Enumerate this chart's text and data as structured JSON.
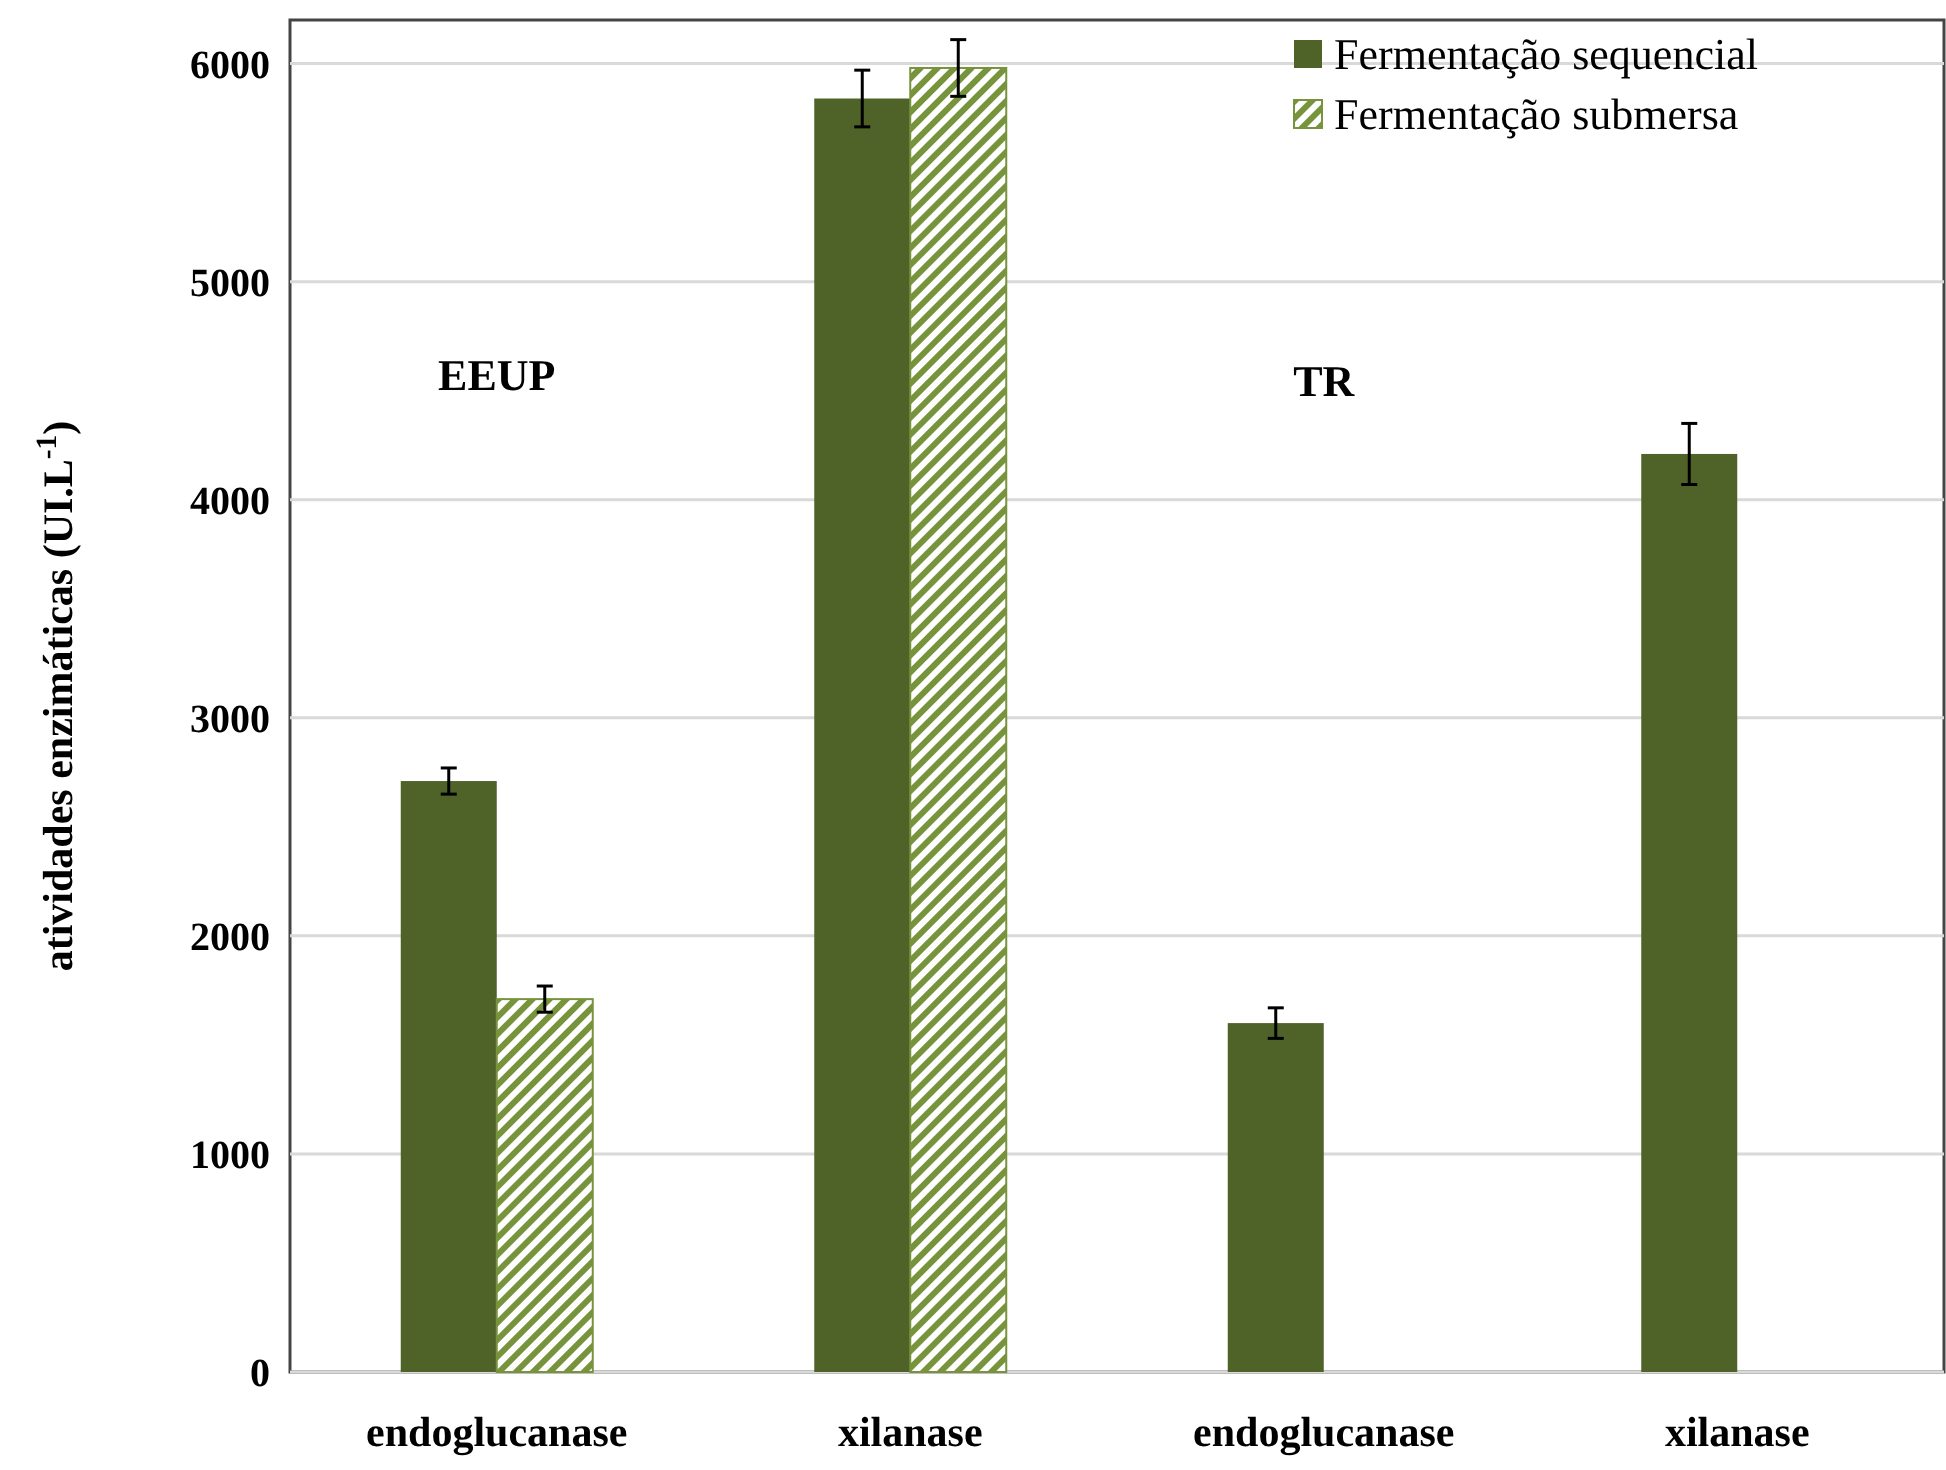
{
  "chart_data": {
    "type": "bar",
    "ylabel": "atividades enzimáticas (UI.L$^{-1}$)",
    "categories": [
      "endoglucanase",
      "xilanase",
      "endoglucanase",
      "xilanase"
    ],
    "series": [
      {
        "name": "Fermentação sequencial",
        "color": "#4f6228",
        "values": [
          2710,
          5840,
          1600,
          4210
        ],
        "errors": [
          60,
          130,
          70,
          140
        ]
      },
      {
        "name": "Fermentação submersa",
        "color": "#77933c",
        "values": [
          1710,
          5980,
          null,
          null
        ],
        "errors": [
          60,
          130,
          null,
          null
        ]
      }
    ],
    "ylim": [
      0,
      6200
    ],
    "yticks": [
      0,
      1000,
      2000,
      3000,
      4000,
      5000,
      6000
    ],
    "grid": "y",
    "legend": "top right",
    "annotations": [
      "EEUP",
      "TR"
    ]
  }
}
